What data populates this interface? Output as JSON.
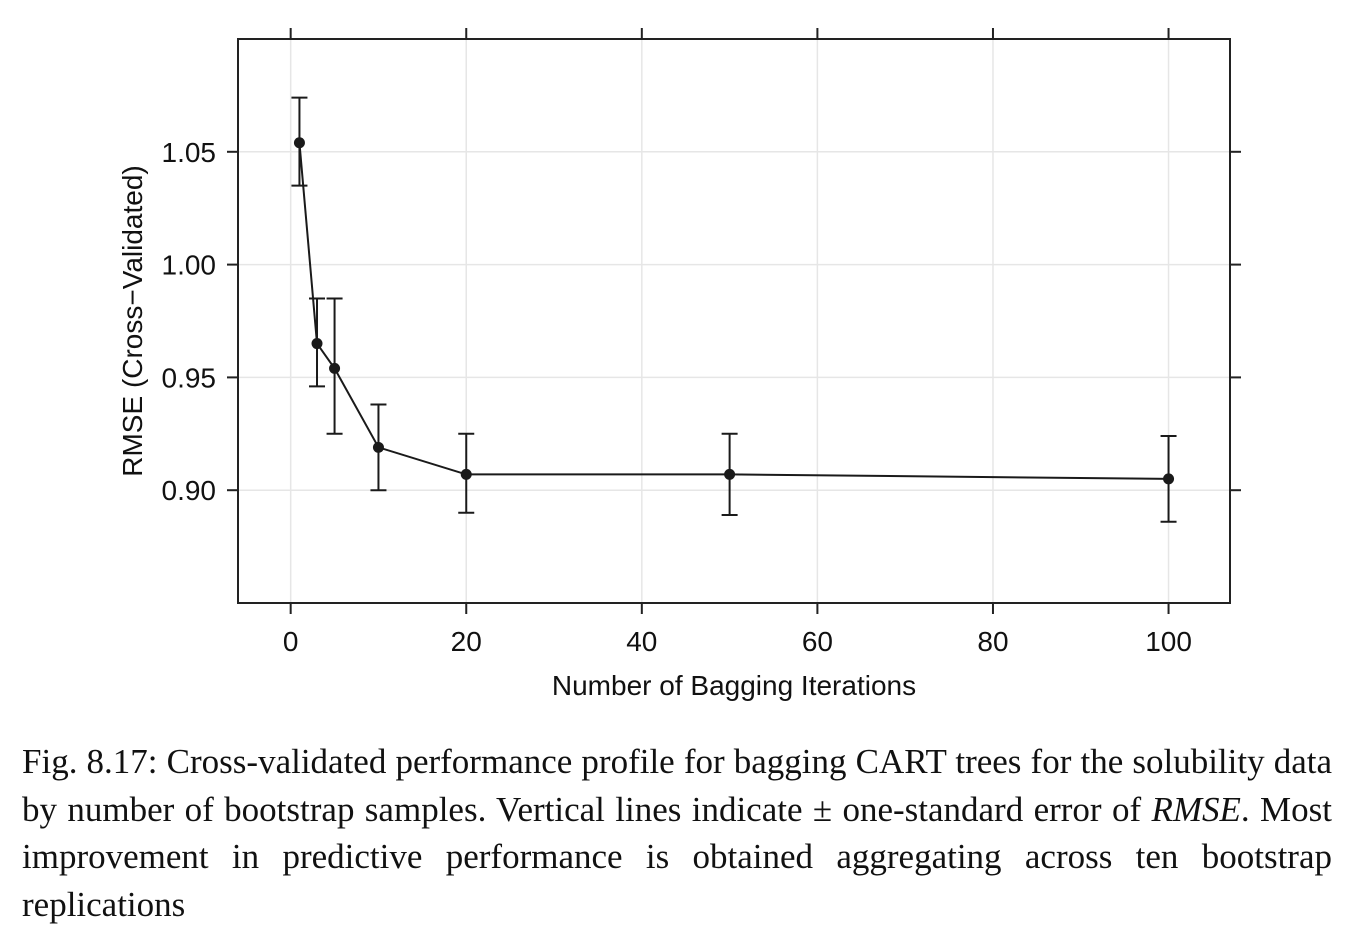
{
  "chart_data": {
    "type": "line",
    "xlabel": "Number of Bagging Iterations",
    "ylabel": "RMSE (Cross−Validated)",
    "xlim": [
      -6,
      107
    ],
    "ylim": [
      0.85,
      1.1
    ],
    "x_ticks": [
      0,
      20,
      40,
      60,
      80,
      100
    ],
    "x_tick_labels": [
      "0",
      "20",
      "40",
      "60",
      "80",
      "100"
    ],
    "y_ticks": [
      0.9,
      0.95,
      1.0,
      1.05
    ],
    "y_tick_labels": [
      "0.90",
      "0.95",
      "1.00",
      "1.05"
    ],
    "grid": true,
    "series": [
      {
        "x": [
          1,
          3,
          5,
          10,
          20,
          50,
          100
        ],
        "y": [
          1.054,
          0.965,
          0.954,
          0.919,
          0.907,
          0.907,
          0.905
        ],
        "lower": [
          1.035,
          0.946,
          0.925,
          0.9,
          0.89,
          0.889,
          0.886
        ],
        "upper": [
          1.074,
          0.985,
          0.985,
          0.938,
          0.925,
          0.925,
          0.924
        ]
      }
    ],
    "color": "#1a1a1a"
  },
  "caption": {
    "label": "Fig. 8.17:",
    "text_before": "Cross-validated performance profile for bagging CART trees for the solubility data by number of bootstrap samples. Vertical lines indicate ± one-standard error of ",
    "math": "RMSE",
    "text_after": ". Most improvement in predictive performance is obtained aggregating across ten bootstrap replications"
  }
}
